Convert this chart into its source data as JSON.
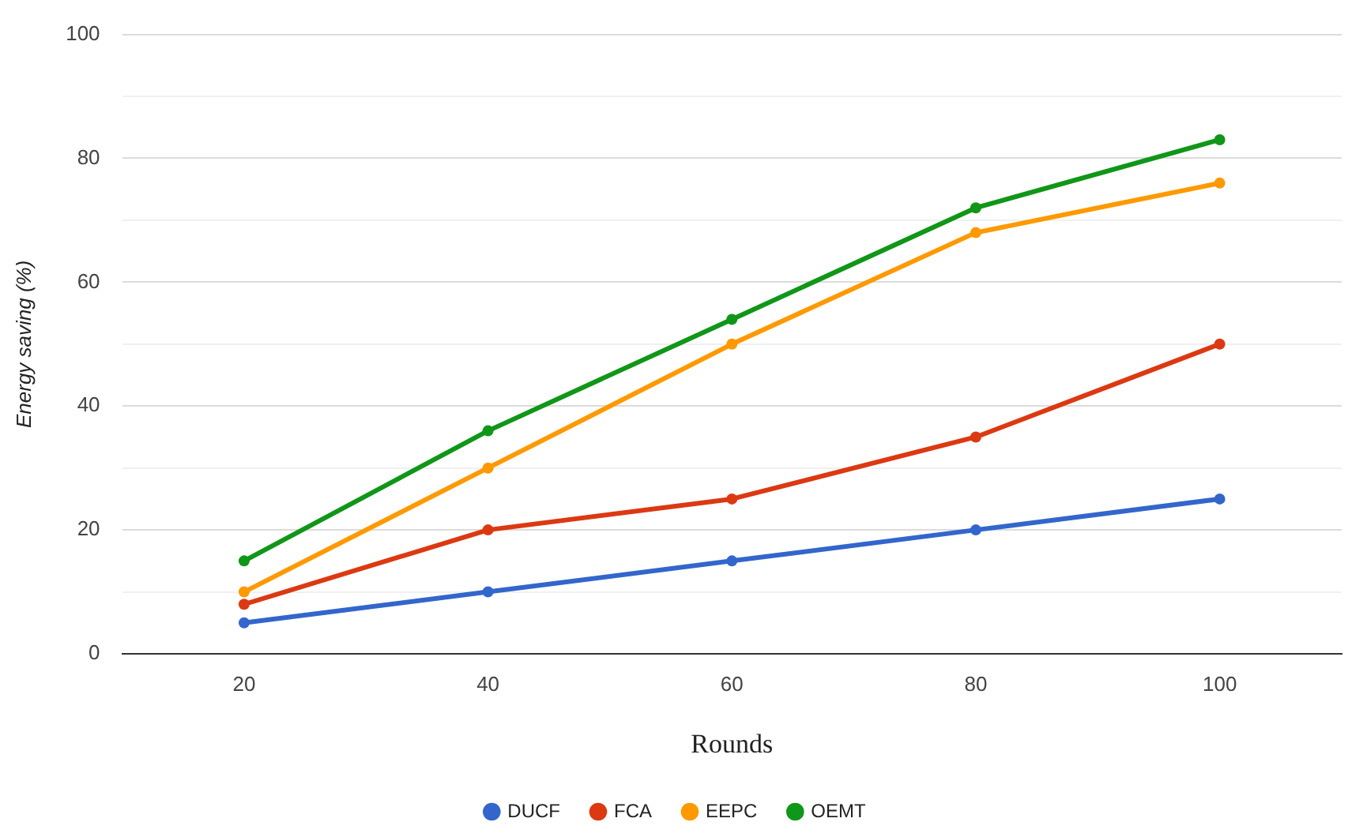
{
  "chart_data": {
    "type": "line",
    "xlabel": "Rounds",
    "ylabel": "Energy saving (%)",
    "categories": [
      "20",
      "40",
      "60",
      "80",
      "100"
    ],
    "series": [
      {
        "name": "DUCF",
        "color": "#3366cc",
        "values": [
          5,
          10,
          15,
          20,
          25
        ]
      },
      {
        "name": "FCA",
        "color": "#dc3912",
        "values": [
          8,
          20,
          25,
          35,
          50
        ]
      },
      {
        "name": "EEPC",
        "color": "#ff9900",
        "values": [
          10,
          30,
          50,
          68,
          76
        ]
      },
      {
        "name": "OEMT",
        "color": "#109618",
        "values": [
          15,
          36,
          54,
          72,
          83
        ]
      }
    ],
    "ylim": [
      0,
      100
    ],
    "yticks": [
      0,
      {
        "value": 10,
        "label": null
      },
      20,
      {
        "value": 30,
        "label": null
      },
      40,
      {
        "value": 50,
        "label": null
      },
      60,
      {
        "value": 70,
        "label": null
      },
      80,
      {
        "value": 90,
        "label": null
      },
      100
    ],
    "grid": "y",
    "legend": "bottom",
    "marker": "circle",
    "line_style": "solid"
  }
}
